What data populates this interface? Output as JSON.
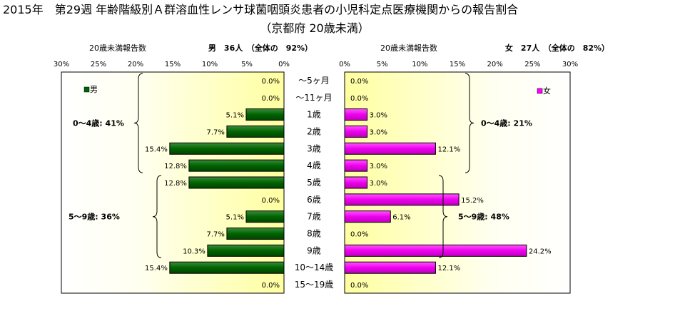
{
  "title": "2015年　第29週 年齢階級別Ａ群溶血性レンサ球菌咽頭炎患者の小児科定点医療機関からの報告割合",
  "subtitle": "（京都府 20歳未満）",
  "chart_data": [
    {
      "type": "bar",
      "side": "male",
      "header_left": "20歳未満報告数",
      "header_right": "男　36人　（全体の　92%）",
      "legend": "男",
      "color": "#006400",
      "categories": [
        "～5ヶ月",
        "～11ヶ月",
        "1歳",
        "2歳",
        "3歳",
        "4歳",
        "5歳",
        "6歳",
        "7歳",
        "8歳",
        "9歳",
        "10～14歳",
        "15～19歳"
      ],
      "values": [
        0.0,
        0.0,
        5.1,
        7.7,
        15.4,
        12.8,
        12.8,
        0.0,
        5.1,
        7.7,
        10.3,
        15.4,
        0.0
      ],
      "value_labels": [
        "0.0%",
        "0.0%",
        "5.1%",
        "7.7%",
        "15.4%",
        "12.8%",
        "12.8%",
        "0.0%",
        "5.1%",
        "7.7%",
        "10.3%",
        "15.4%",
        "0.0%"
      ],
      "xlim": [
        0,
        30
      ],
      "ticks": [
        "30%",
        "25%",
        "20%",
        "15%",
        "10%",
        "5%",
        "0%"
      ],
      "groups": [
        {
          "label": "0～4歳: 41%",
          "from": 0,
          "to": 5
        },
        {
          "label": "5～9歳: 36%",
          "from": 6,
          "to": 10
        }
      ]
    },
    {
      "type": "bar",
      "side": "female",
      "header_left": "20歳未満報告数",
      "header_right": "女　27人　（全体の　82%）",
      "legend": "女",
      "color": "#ff00ff",
      "categories": [
        "～5ヶ月",
        "～11ヶ月",
        "1歳",
        "2歳",
        "3歳",
        "4歳",
        "5歳",
        "6歳",
        "7歳",
        "8歳",
        "9歳",
        "10～14歳",
        "15～19歳"
      ],
      "values": [
        0.0,
        0.0,
        3.0,
        3.0,
        12.1,
        3.0,
        3.0,
        15.2,
        6.1,
        0.0,
        24.2,
        12.1,
        0.0
      ],
      "value_labels": [
        "0.0%",
        "0.0%",
        "3.0%",
        "3.0%",
        "12.1%",
        "3.0%",
        "3.0%",
        "15.2%",
        "6.1%",
        "0.0%",
        "24.2%",
        "12.1%",
        "0.0%"
      ],
      "xlim": [
        0,
        30
      ],
      "ticks": [
        "0%",
        "5%",
        "10%",
        "15%",
        "20%",
        "25%",
        "30%"
      ],
      "groups": [
        {
          "label": "0～4歳: 21%",
          "from": 0,
          "to": 5
        },
        {
          "label": "5～9歳: 48%",
          "from": 6,
          "to": 10
        }
      ]
    }
  ]
}
